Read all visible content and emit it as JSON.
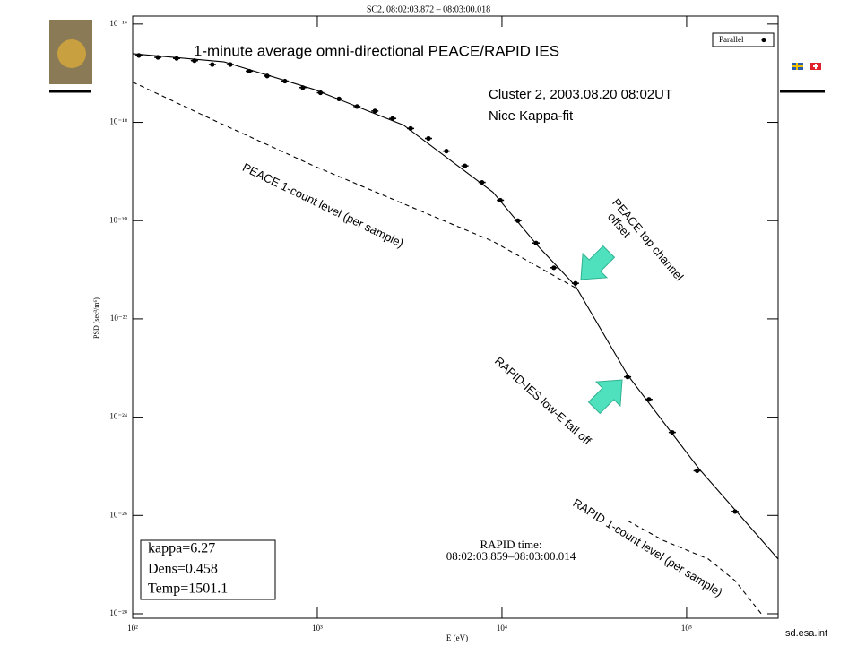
{
  "chart_data": {
    "type": "scatter",
    "title": "SC2, 08:02:03.872 – 08:03:00.018",
    "x_label": "E (eV)",
    "y_label": "PSD (sec³/m⁶)",
    "log_x": true,
    "log_y": true,
    "xlim": [
      100,
      313000
    ],
    "ylim": [
      8.1e-29,
      1.45e-16
    ],
    "xticks": [
      {
        "value": 100,
        "label": "10²"
      },
      {
        "value": 1000,
        "label": "10³"
      },
      {
        "value": 10000,
        "label": "10⁴"
      },
      {
        "value": 100000,
        "label": "10⁵"
      }
    ],
    "yticks": [
      {
        "value": 1e-16,
        "label": "10⁻¹⁶"
      },
      {
        "value": 1e-18,
        "label": "10⁻¹⁸"
      },
      {
        "value": 1e-20,
        "label": "10⁻²⁰"
      },
      {
        "value": 1e-22,
        "label": "10⁻²²"
      },
      {
        "value": 1e-24,
        "label": "10⁻²⁴"
      },
      {
        "value": 1e-26,
        "label": "10⁻²⁶"
      },
      {
        "value": 1e-28,
        "label": "10⁻²⁸"
      }
    ],
    "series": [
      {
        "name": "Parallel",
        "color": "#000000",
        "marker": "circle",
        "x": [
          108,
          137,
          173,
          216,
          270,
          338,
          428,
          535,
          668,
          835,
          1040,
          1310,
          1640,
          2050,
          2560,
          3200,
          4000,
          5000,
          6300,
          7800,
          9800,
          12200,
          15300,
          19100,
          25000,
          47900,
          62500,
          83600,
          114000,
          183000
        ],
        "values": [
          2.3e-17,
          2.1e-17,
          2e-17,
          1.8e-17,
          1.5e-17,
          1.5e-17,
          1.1e-17,
          8.8e-18,
          6.9e-18,
          5.1e-18,
          4e-18,
          3e-18,
          2.1e-18,
          1.7e-18,
          1.2e-18,
          7.5e-19,
          4.7e-19,
          2.6e-19,
          1.3e-19,
          6e-20,
          2.6e-20,
          1e-20,
          3.5e-21,
          1.1e-21,
          5.3e-22,
          6.6e-24,
          2.3e-24,
          4.9e-25,
          8.1e-26,
          1.2e-26
        ]
      },
      {
        "color": "#000000",
        "line_style": "solid",
        "x": [
          100,
          313,
          957,
          2930,
          8930,
          15600,
          25000,
          47900,
          117000,
          313000
        ],
        "values": [
          2.5e-17,
          1.7e-17,
          4.7e-18,
          8.8e-19,
          3.8e-20,
          3.1e-21,
          4.7e-22,
          7.2e-24,
          8.8e-26,
          1.3e-27
        ]
      },
      {
        "color": "#000000",
        "line_style": "dashed",
        "x": [
          100,
          313,
          957,
          2930,
          8930,
          25000
        ],
        "values": [
          6.6e-18,
          8.8e-19,
          1.3e-19,
          2.2e-20,
          3.8e-21,
          4.3e-22
        ]
      },
      {
        "color": "#000000",
        "line_style": "dashed",
        "x": [
          47900,
          74800,
          131000,
          183000,
          256000
        ],
        "values": [
          7.8e-27,
          3.1e-27,
          1.3e-27,
          4.7e-28,
          9.6e-29
        ]
      }
    ],
    "legend_position": "upper right",
    "annotations": [
      "1-minute average omni-directional PEACE/RAPID IES",
      "Cluster 2, 2003.08.20 08:02UT",
      "Nice Kappa-fit",
      "PEACE 1-count level (per sample)",
      "PEACE top channel",
      "offset",
      "RAPID-IES low-E fall off",
      "RAPID 1-count level (per sample)"
    ],
    "rapid_time": [
      "RAPID time:",
      "08:02:03.859–08:03:00.014"
    ],
    "fit_params": [
      "kappa=6.27",
      "Dens=0.458",
      "Temp=1501.1"
    ],
    "footer": "sd.esa.int"
  }
}
